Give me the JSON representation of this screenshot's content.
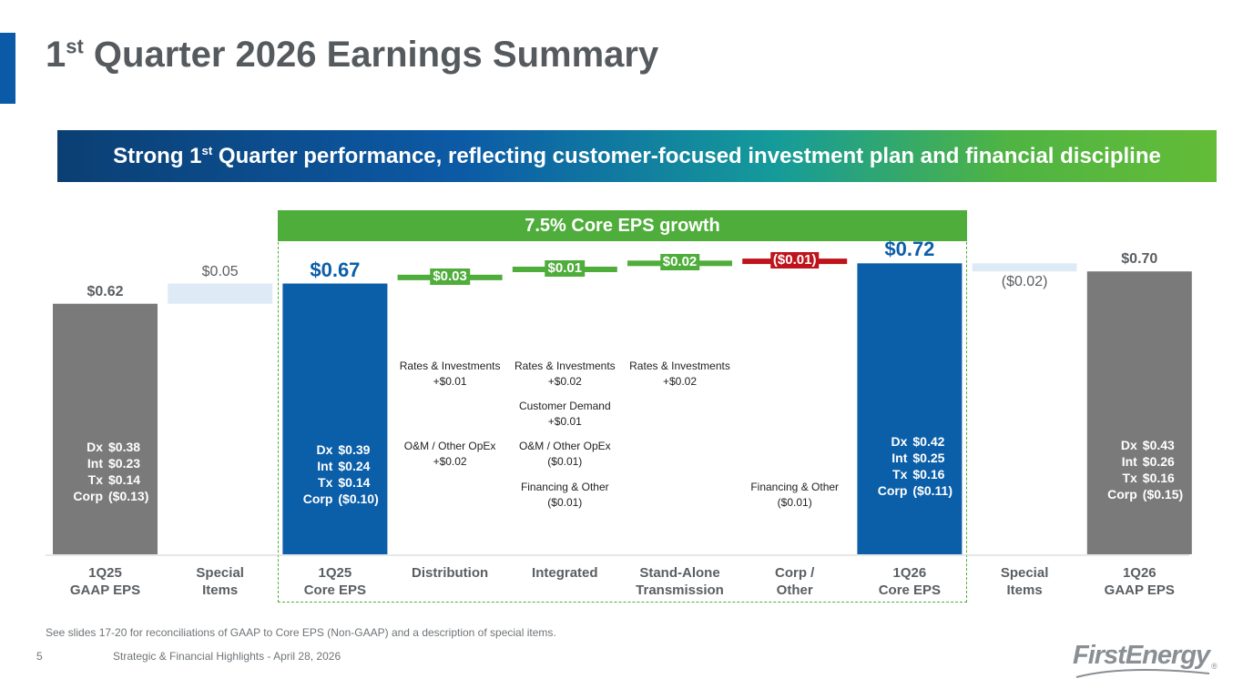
{
  "header": {
    "title_main": "1",
    "title_sup": "st",
    "title_rest": " Quarter 2026 Earnings Summary"
  },
  "banner": {
    "pre": "Strong 1",
    "sup": "st",
    "post": " Quarter performance, reflecting customer-focused investment plan and financial discipline"
  },
  "growth_label": "7.5% Core EPS growth",
  "colors": {
    "gaap_gray": "#7a7a7a",
    "core_blue": "#0b5ea8",
    "increase_green": "#4fad3b",
    "decrease_red": "#c0141c",
    "special_light": "#deebf7",
    "text_gray": "#5a5e62"
  },
  "chart_data": {
    "type": "bar",
    "subtype": "waterfall",
    "ylim": [
      0,
      0.76
    ],
    "categories": [
      {
        "label": "1Q25\nGAAP EPS",
        "kind": "total",
        "value": 0.62,
        "value_label": "$0.62",
        "color": "gaap_gray",
        "segments": [
          [
            "Dx",
            "$0.38"
          ],
          [
            "Int",
            "$0.23"
          ],
          [
            "Tx",
            "$0.14"
          ],
          [
            "Corp",
            "($0.13)"
          ]
        ]
      },
      {
        "label": "Special\nItems",
        "kind": "delta",
        "value": 0.05,
        "value_label": "$0.05",
        "color": "special_light"
      },
      {
        "label": "1Q25\nCore EPS",
        "kind": "total",
        "value": 0.67,
        "value_label": "$0.67",
        "color": "core_blue",
        "segments": [
          [
            "Dx",
            "$0.39"
          ],
          [
            "Int",
            "$0.24"
          ],
          [
            "Tx",
            "$0.14"
          ],
          [
            "Corp",
            "($0.10)"
          ]
        ]
      },
      {
        "label": "Distribution",
        "kind": "delta",
        "value": 0.03,
        "value_label": "$0.03",
        "color": "increase_green",
        "drivers": [
          [
            "Rates & Investments",
            "+$0.01"
          ],
          [
            "O&M / Other OpEx",
            "+$0.02"
          ]
        ]
      },
      {
        "label": "Integrated",
        "kind": "delta",
        "value": 0.01,
        "value_label": "$0.01",
        "color": "increase_green",
        "drivers": [
          [
            "Rates & Investments",
            "+$0.02"
          ],
          [
            "Customer Demand",
            "+$0.01"
          ],
          [
            "O&M / Other OpEx",
            "($0.01)"
          ],
          [
            "Financing & Other",
            "($0.01)"
          ]
        ]
      },
      {
        "label": "Stand-Alone\nTransmission",
        "kind": "delta",
        "value": 0.02,
        "value_label": "$0.02",
        "color": "increase_green",
        "drivers": [
          [
            "Rates & Investments",
            "+$0.02"
          ]
        ]
      },
      {
        "label": "Corp /\nOther",
        "kind": "delta",
        "value": -0.01,
        "value_label": "($0.01)",
        "color": "decrease_red",
        "drivers": [
          [
            "Financing & Other",
            "($0.01)"
          ]
        ]
      },
      {
        "label": "1Q26\nCore EPS",
        "kind": "total",
        "value": 0.72,
        "value_label": "$0.72",
        "color": "core_blue",
        "segments": [
          [
            "Dx",
            "$0.42"
          ],
          [
            "Int",
            "$0.25"
          ],
          [
            "Tx",
            "$0.16"
          ],
          [
            "Corp",
            "($0.11)"
          ]
        ]
      },
      {
        "label": "Special\nItems",
        "kind": "delta",
        "value": -0.02,
        "value_label": "($0.02)",
        "color": "special_light"
      },
      {
        "label": "1Q26\nGAAP EPS",
        "kind": "total",
        "value": 0.7,
        "value_label": "$0.70",
        "color": "gaap_gray",
        "segments": [
          [
            "Dx",
            "$0.43"
          ],
          [
            "Int",
            "$0.26"
          ],
          [
            "Tx",
            "$0.16"
          ],
          [
            "Corp",
            "($0.15)"
          ]
        ]
      }
    ]
  },
  "footnote": "See slides 17-20 for reconciliations of GAAP to Core EPS (Non-GAAP) and a description of special items.",
  "footer": {
    "page_number": "5",
    "text": "Strategic & Financial Highlights - April 28, 2026",
    "logo": "FirstEnergy",
    "logo_mark": "®"
  }
}
